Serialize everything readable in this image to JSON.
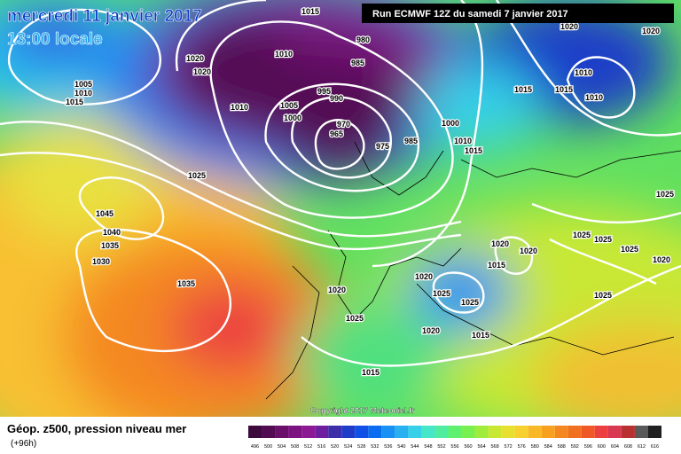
{
  "header": {
    "date": "mercredi 11 janvier 2017",
    "time": "13:00 locale",
    "run": "Run ECMWF 12Z du samedi 7 janvier 2017"
  },
  "copyright": "Copyright 2017 Meteociel.fr",
  "footer": {
    "title": "Géop. z500, pression niveau mer",
    "lead": "(+96h)"
  },
  "scale": {
    "values": [
      496,
      500,
      504,
      508,
      512,
      516,
      520,
      524,
      528,
      532,
      536,
      540,
      544,
      548,
      552,
      556,
      560,
      564,
      568,
      572,
      576,
      580,
      584,
      588,
      592,
      596,
      600,
      604,
      608,
      612,
      616
    ],
    "colors": [
      "#3d0a3d",
      "#520c52",
      "#6a0f6a",
      "#7c1380",
      "#8c1a94",
      "#6e1fa0",
      "#3c2ea8",
      "#1e3cc8",
      "#1050e6",
      "#0a6cf0",
      "#1890f4",
      "#28b0f0",
      "#36d0e8",
      "#46e6c8",
      "#50eca0",
      "#60f070",
      "#78f050",
      "#a0ec3c",
      "#c8e834",
      "#e8e030",
      "#f8d030",
      "#f8b828",
      "#f8a020",
      "#f48820",
      "#f07020",
      "#f05828",
      "#ec4040",
      "#d83850",
      "#b83030",
      "#5a5a5a",
      "#202020"
    ]
  },
  "map": {
    "isobar_labels": [
      "1005",
      "1010",
      "1015",
      "1020",
      "1020",
      "1010",
      "1015",
      "980",
      "985",
      "995",
      "990",
      "1005",
      "1000",
      "1010",
      "970",
      "965",
      "975",
      "985",
      "1000",
      "1010",
      "1015",
      "1025",
      "1045",
      "1040",
      "1035",
      "1030",
      "1035",
      "1020",
      "1025",
      "1020",
      "1025",
      "1025",
      "1020",
      "1015",
      "1015",
      "1020",
      "1015",
      "1020",
      "1020",
      "1020",
      "1010",
      "1010",
      "1015",
      "1015",
      "1025",
      "1025",
      "1025",
      "1025",
      "1020",
      "1025"
    ]
  }
}
